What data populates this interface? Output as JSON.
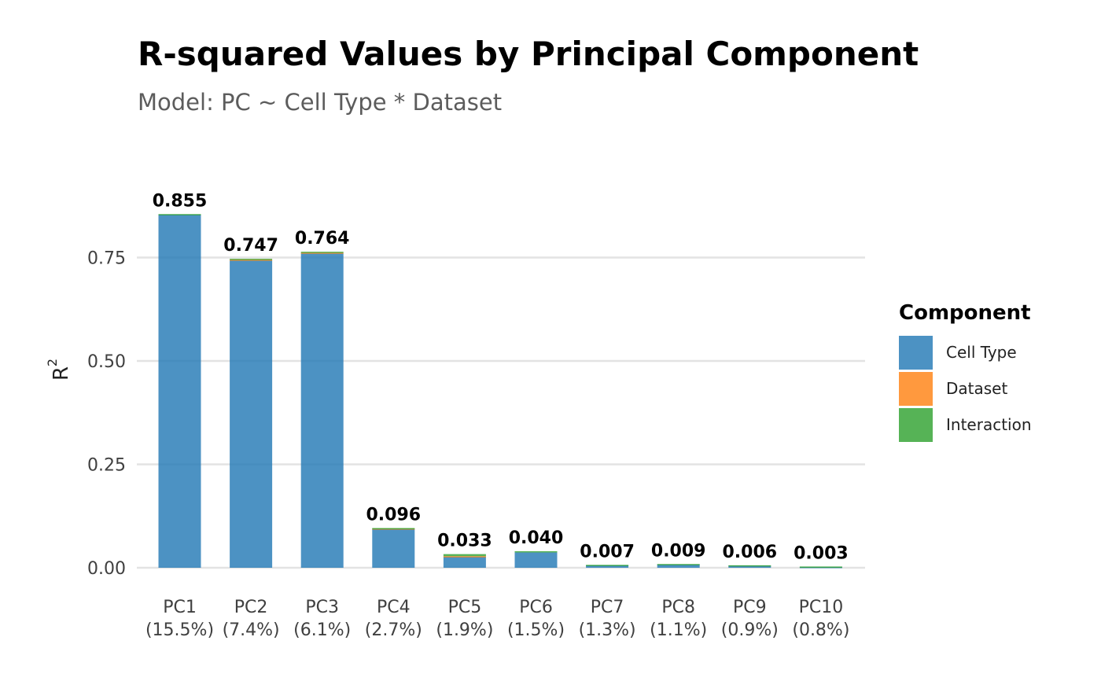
{
  "chart_data": {
    "type": "bar",
    "stacked": true,
    "title": "R-squared Values by Principal Component",
    "subtitle": "Model: PC ~ Cell Type * Dataset",
    "xlabel": "",
    "ylabel": "R",
    "ylabel_superscript": "2",
    "ylim": [
      0,
      0.87
    ],
    "yticks": [
      "0.00",
      "0.25",
      "0.50",
      "0.75"
    ],
    "grid": "horizontal",
    "legend_position": "right",
    "legend_title": "Component",
    "categories": [
      "PC1",
      "PC2",
      "PC3",
      "PC4",
      "PC5",
      "PC6",
      "PC7",
      "PC8",
      "PC9",
      "PC10"
    ],
    "category_sublabels": [
      "(15.5%)",
      "(7.4%)",
      "(6.1%)",
      "(2.7%)",
      "(1.9%)",
      "(1.5%)",
      "(1.3%)",
      "(1.1%)",
      "(0.9%)",
      "(0.8%)"
    ],
    "series": [
      {
        "name": "Cell Type",
        "color": "#1f77b4",
        "values": [
          0.854,
          0.743,
          0.76,
          0.093,
          0.027,
          0.037,
          0.006,
          0.008,
          0.005,
          0.002
        ]
      },
      {
        "name": "Dataset",
        "color": "#ff7f0e",
        "values": [
          0.0,
          0.002,
          0.002,
          0.002,
          0.001,
          0.0,
          0.0,
          0.0,
          0.0,
          0.0
        ]
      },
      {
        "name": "Interaction",
        "color": "#2ca02c",
        "values": [
          0.001,
          0.002,
          0.002,
          0.001,
          0.005,
          0.003,
          0.001,
          0.001,
          0.001,
          0.001
        ]
      }
    ],
    "totals_labels": [
      "0.855",
      "0.747",
      "0.764",
      "0.096",
      "0.033",
      "0.040",
      "0.007",
      "0.009",
      "0.006",
      "0.003"
    ]
  }
}
